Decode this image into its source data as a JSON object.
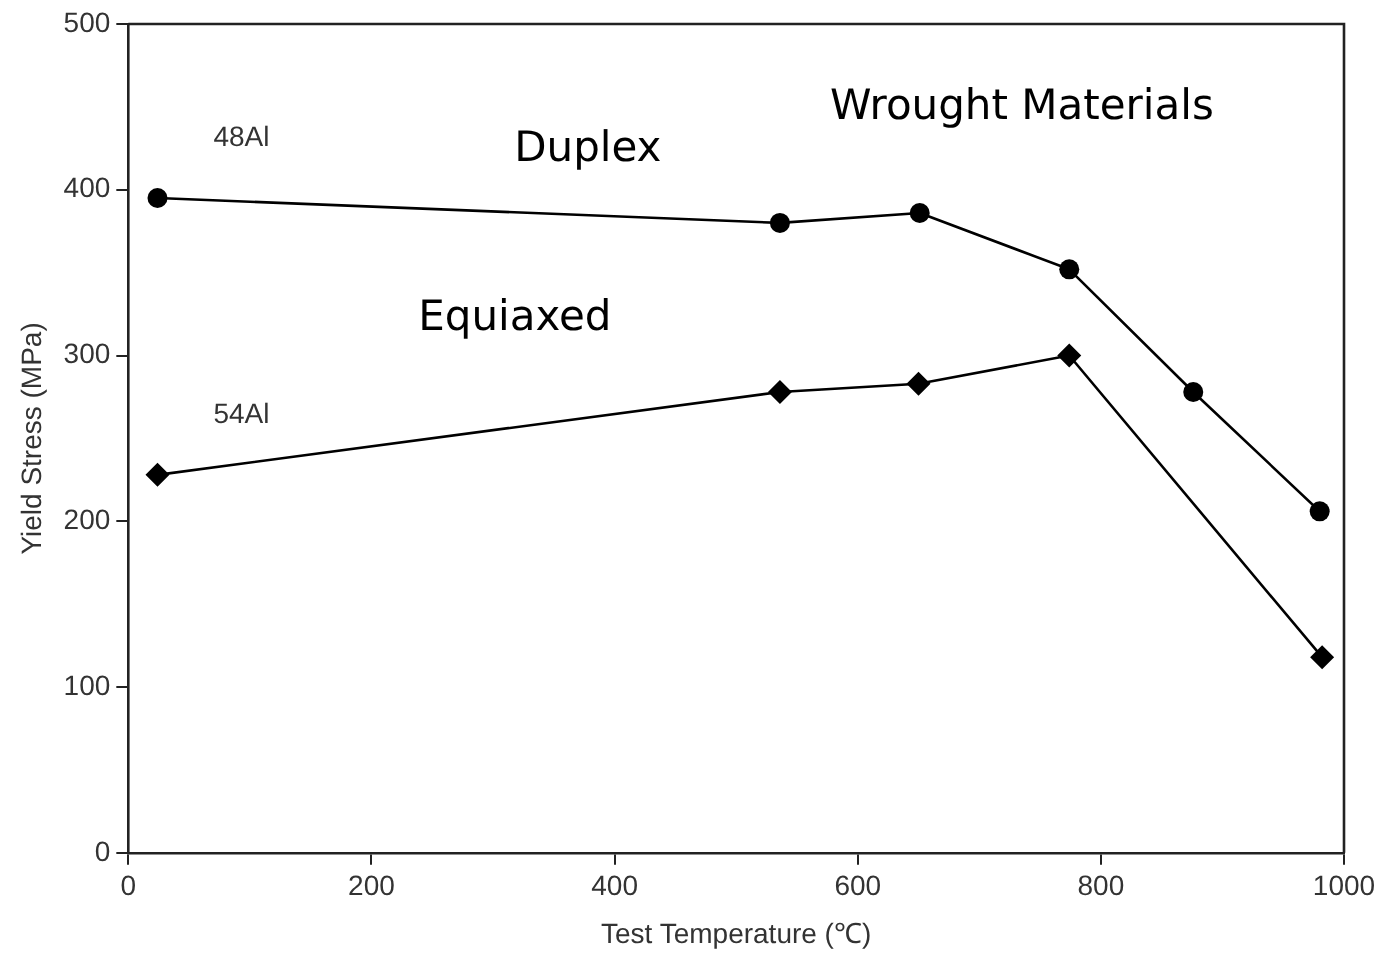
{
  "chart_data": {
    "type": "line",
    "xlabel": "Test Temperature (℃)",
    "ylabel": "Yield Stress (MPa)",
    "xlim": [
      0,
      1000
    ],
    "xticks": [
      0,
      200,
      400,
      600,
      800,
      1000
    ],
    "ylim": [
      0,
      500
    ],
    "yticks": [
      0,
      100,
      200,
      300,
      400,
      500
    ],
    "grid": false,
    "legend": false,
    "line_style": "solid",
    "series": [
      {
        "name": "48Al",
        "color": "#000000",
        "marker": "circle",
        "x": [
          24,
          536,
          651,
          774,
          876,
          980
        ],
        "values": [
          395,
          380,
          386,
          352,
          278,
          206
        ]
      },
      {
        "name": "54Al",
        "color": "#000000",
        "marker": "diamond",
        "x": [
          24,
          536,
          650,
          774,
          982
        ],
        "values": [
          228,
          278,
          283,
          300,
          118
        ]
      }
    ],
    "annotations": [
      "Duplex",
      "Equiaxed",
      "Wrought Materials"
    ]
  }
}
